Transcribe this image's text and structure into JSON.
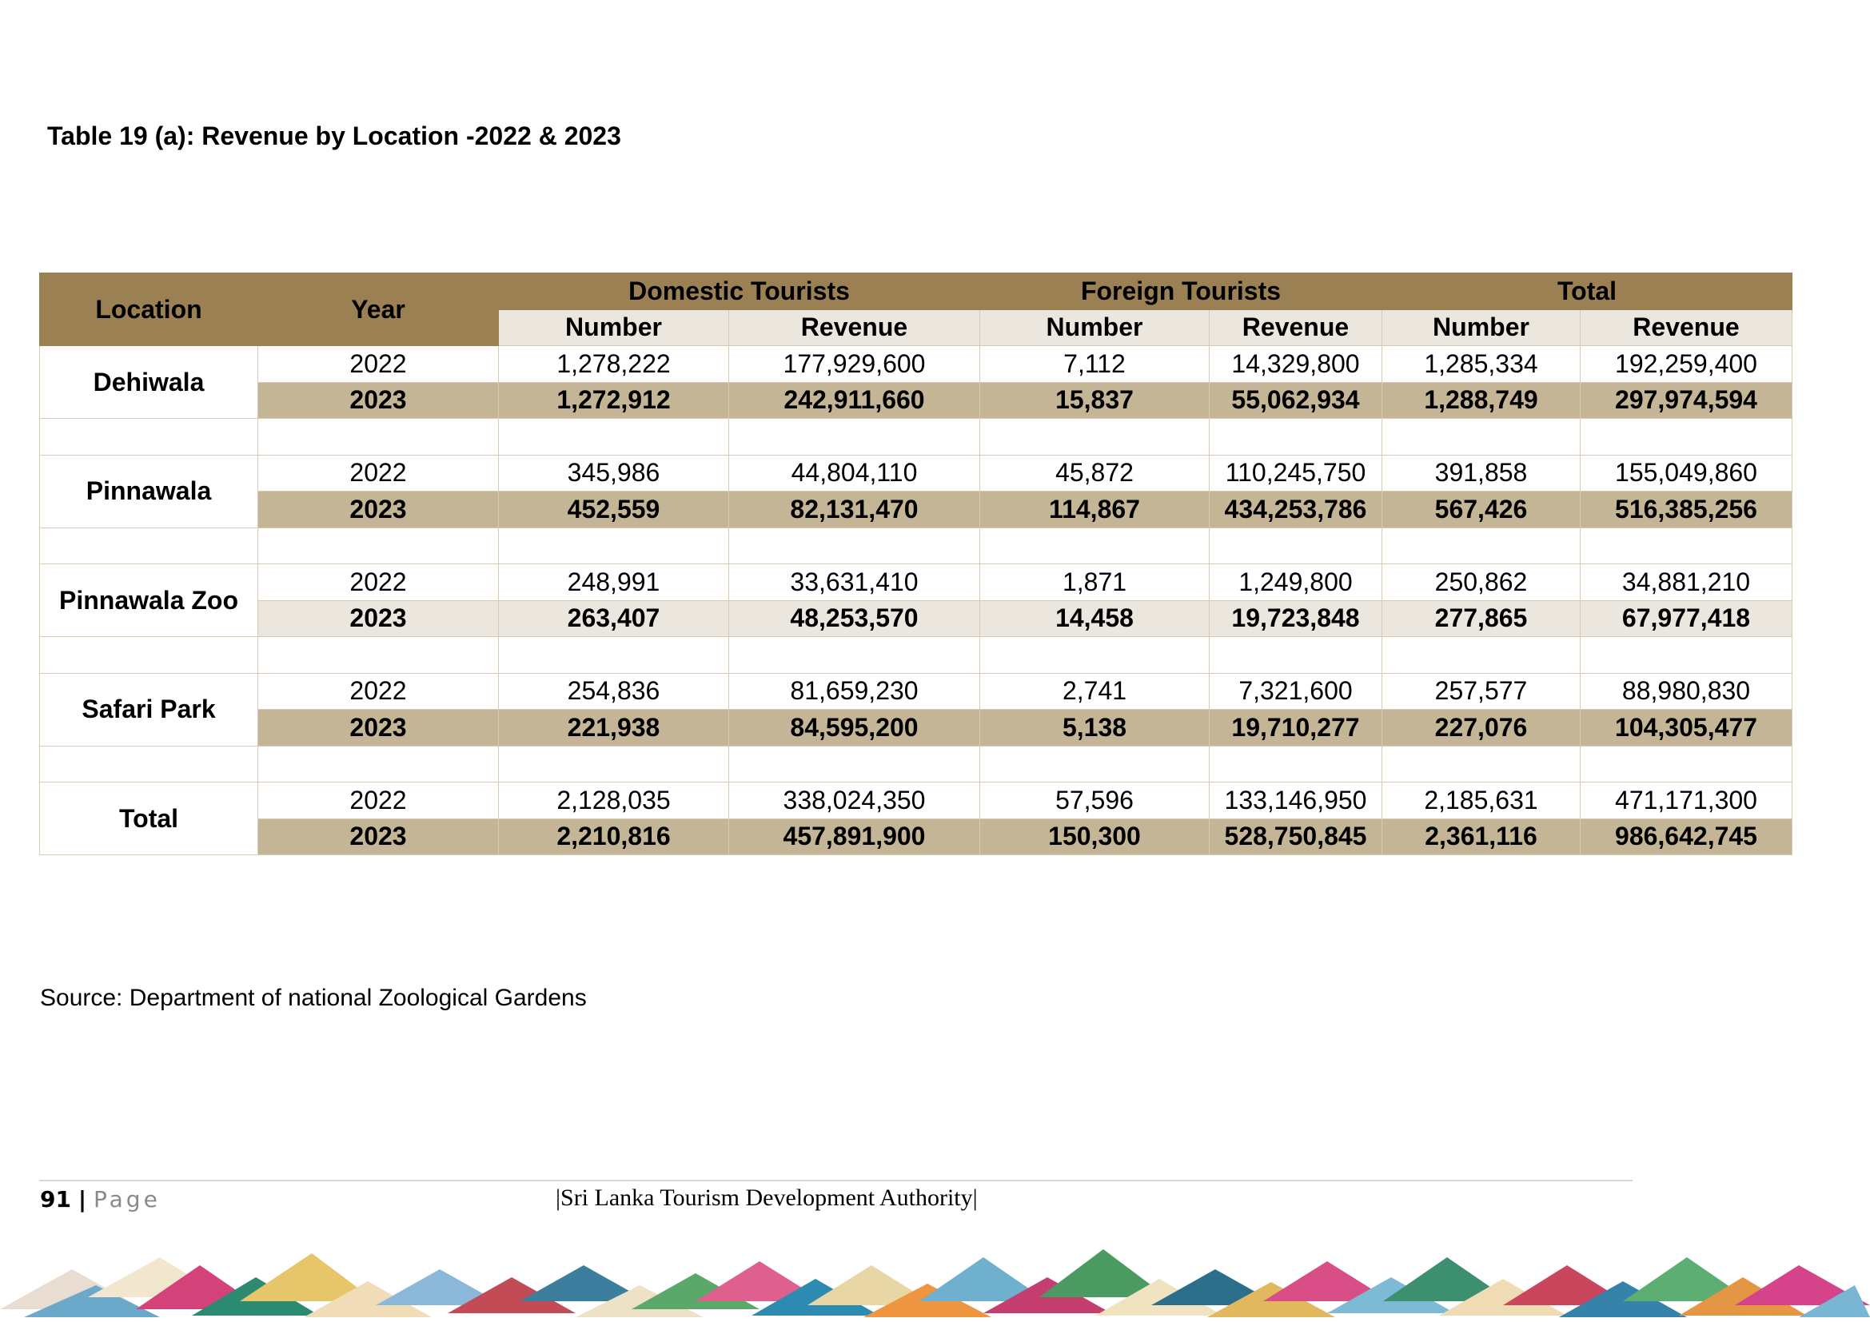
{
  "title": "Table 19 (a): Revenue by Location -2022 & 2023",
  "headers": {
    "location": "Location",
    "year": "Year",
    "domestic": "Domestic Tourists",
    "foreign": "Foreign Tourists",
    "total": "Total",
    "number": "Number",
    "revenue": "Revenue"
  },
  "rows": [
    {
      "location": "Dehiwala",
      "y2022": [
        "2022",
        "1,278,222",
        "177,929,600",
        "7,112",
        "14,329,800",
        "1,285,334",
        "192,259,400"
      ],
      "y2023": [
        "2023",
        "1,272,912",
        "242,911,660",
        "15,837",
        "55,062,934",
        "1,288,749",
        "297,974,594"
      ]
    },
    {
      "location": "Pinnawala",
      "y2022": [
        "2022",
        "345,986",
        "44,804,110",
        "45,872",
        "110,245,750",
        "391,858",
        "155,049,860"
      ],
      "y2023": [
        "2023",
        "452,559",
        "82,131,470",
        "114,867",
        "434,253,786",
        "567,426",
        "516,385,256"
      ]
    },
    {
      "location": "Pinnawala Zoo",
      "y2022": [
        "2022",
        "248,991",
        "33,631,410",
        "1,871",
        "1,249,800",
        "250,862",
        "34,881,210"
      ],
      "y2023": [
        "2023",
        "263,407",
        "48,253,570",
        "14,458",
        "19,723,848",
        "277,865",
        "67,977,418"
      ]
    },
    {
      "location": "Safari Park",
      "y2022": [
        "2022",
        "254,836",
        "81,659,230",
        "2,741",
        "7,321,600",
        "257,577",
        "88,980,830"
      ],
      "y2023": [
        "2023",
        "221,938",
        "84,595,200",
        "5,138",
        "19,710,277",
        "227,076",
        "104,305,477"
      ]
    },
    {
      "location": "Total",
      "y2022": [
        "2022",
        "2,128,035",
        "338,024,350",
        "57,596",
        "133,146,950",
        "2,185,631",
        "471,171,300"
      ],
      "y2023": [
        "2023",
        "2,210,816",
        "457,891,900",
        "150,300",
        "528,750,845",
        "2,361,116",
        "986,642,745"
      ]
    }
  ],
  "source": "Source: Department of national Zoological Gardens",
  "footer": {
    "page_number": "91",
    "separator": "|",
    "page_word": "Page",
    "organization": "|Sri Lanka Tourism Development Authority|"
  },
  "colors": {
    "header_dark": "#9a8053",
    "header_light": "#ebe7df",
    "row_2023": "#c3b595",
    "border": "#d9cbb1"
  }
}
